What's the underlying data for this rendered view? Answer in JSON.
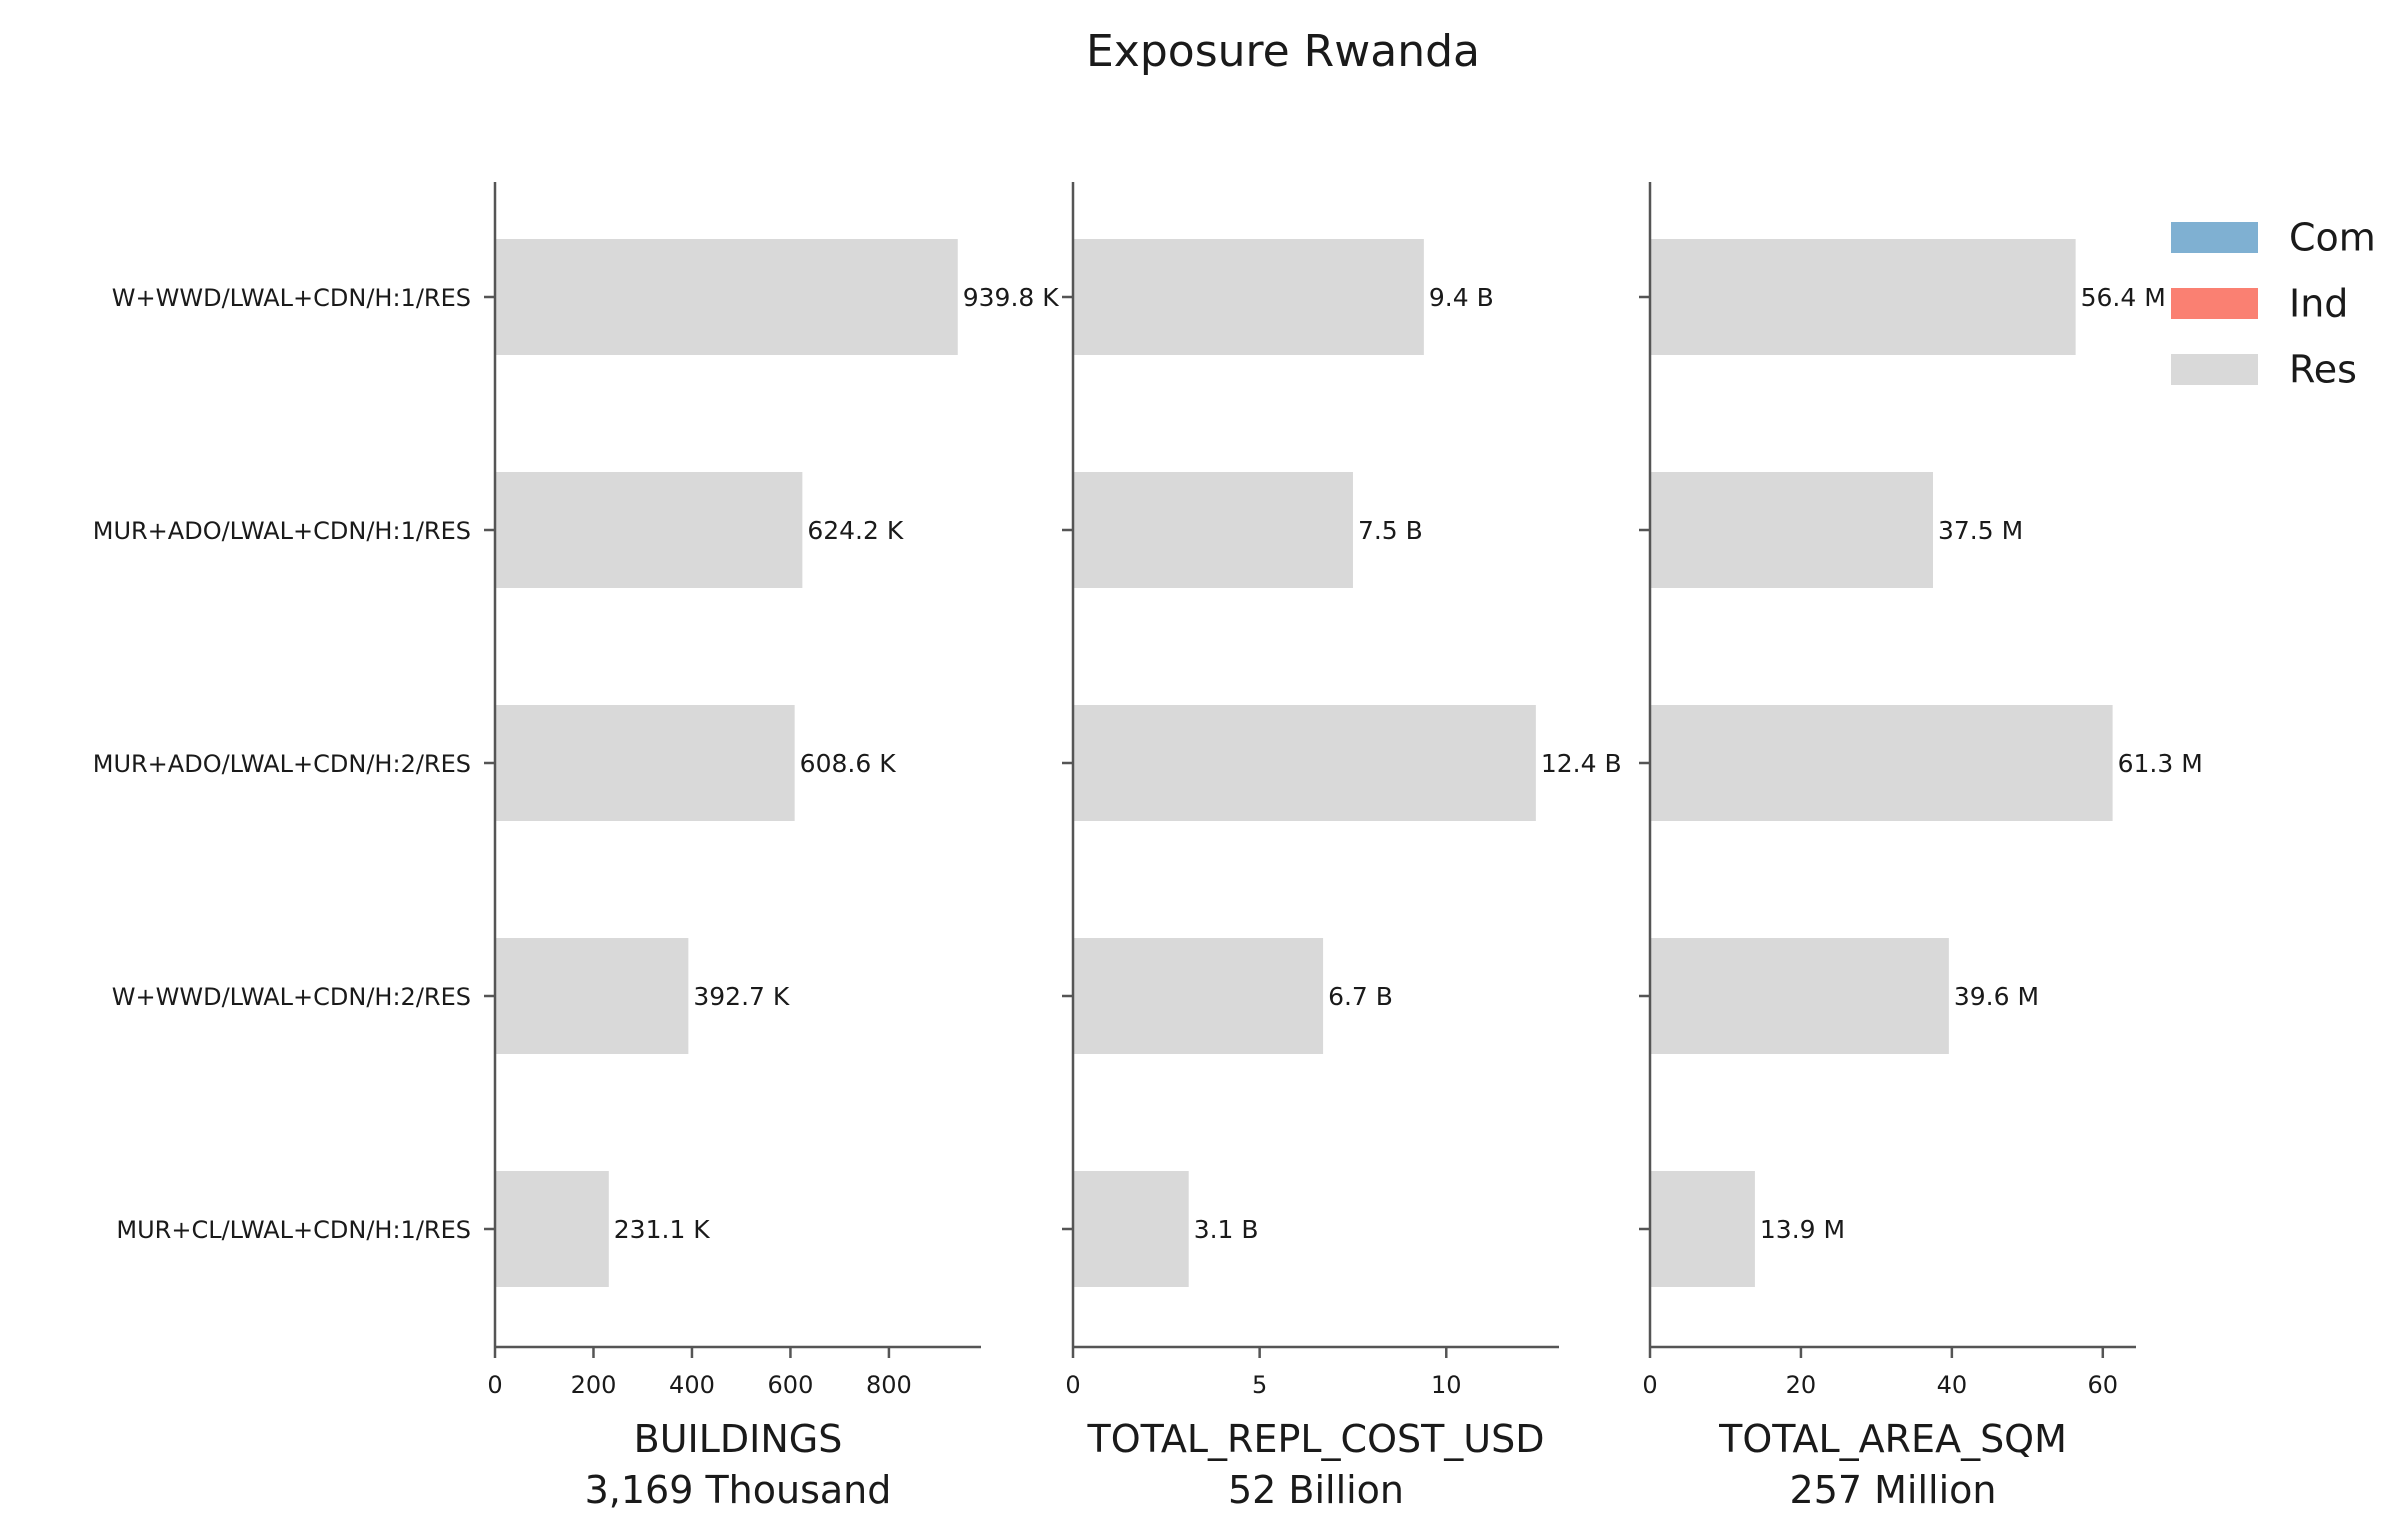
{
  "title": "Exposure Rwanda",
  "legend": [
    {
      "label": "Com",
      "color": "#7fb0d2"
    },
    {
      "label": "Ind",
      "color": "#fa8072"
    },
    {
      "label": "Res",
      "color": "#d9d9d9"
    }
  ],
  "chart_data": [
    {
      "type": "bar",
      "orientation": "horizontal",
      "categories": [
        "W+WWD/LWAL+CDN/H:1/RES",
        "MUR+ADO/LWAL+CDN/H:1/RES",
        "MUR+ADO/LWAL+CDN/H:2/RES",
        "W+WWD/LWAL+CDN/H:2/RES",
        "MUR+CL/LWAL+CDN/H:1/RES"
      ],
      "series": [
        {
          "name": "Res",
          "values": [
            939.8,
            624.2,
            608.6,
            392.7,
            231.1
          ]
        }
      ],
      "value_labels": [
        "939.8 K",
        "624.2 K",
        "608.6 K",
        "392.7 K",
        "231.1 K"
      ],
      "xlabel": "BUILDINGS",
      "xlabel_sub": "3,169 Thousand",
      "xlim": [
        0,
        987
      ],
      "xticks": [
        0,
        200,
        400,
        600,
        800
      ],
      "grid": false
    },
    {
      "type": "bar",
      "orientation": "horizontal",
      "categories": [
        "W+WWD/LWAL+CDN/H:1/RES",
        "MUR+ADO/LWAL+CDN/H:1/RES",
        "MUR+ADO/LWAL+CDN/H:2/RES",
        "W+WWD/LWAL+CDN/H:2/RES",
        "MUR+CL/LWAL+CDN/H:1/RES"
      ],
      "series": [
        {
          "name": "Res",
          "values": [
            9.4,
            7.5,
            12.4,
            6.7,
            3.1
          ]
        }
      ],
      "value_labels": [
        "9.4 B",
        "7.5 B",
        "12.4 B",
        "6.7 B",
        "3.1 B"
      ],
      "xlabel": "TOTAL_REPL_COST_USD",
      "xlabel_sub": "52 Billion",
      "xlim": [
        0,
        13.02
      ],
      "xticks": [
        0,
        5,
        10
      ],
      "grid": false
    },
    {
      "type": "bar",
      "orientation": "horizontal",
      "categories": [
        "W+WWD/LWAL+CDN/H:1/RES",
        "MUR+ADO/LWAL+CDN/H:1/RES",
        "MUR+ADO/LWAL+CDN/H:2/RES",
        "W+WWD/LWAL+CDN/H:2/RES",
        "MUR+CL/LWAL+CDN/H:1/RES"
      ],
      "series": [
        {
          "name": "Res",
          "values": [
            56.4,
            37.5,
            61.3,
            39.6,
            13.9
          ]
        }
      ],
      "value_labels": [
        "56.4 M",
        "37.5 M",
        "61.3 M",
        "39.6 M",
        "13.9 M"
      ],
      "xlabel": "TOTAL_AREA_SQM",
      "xlabel_sub": "257 Million",
      "xlim": [
        0,
        64.4
      ],
      "xticks": [
        0,
        20,
        40,
        60
      ],
      "grid": false
    }
  ]
}
